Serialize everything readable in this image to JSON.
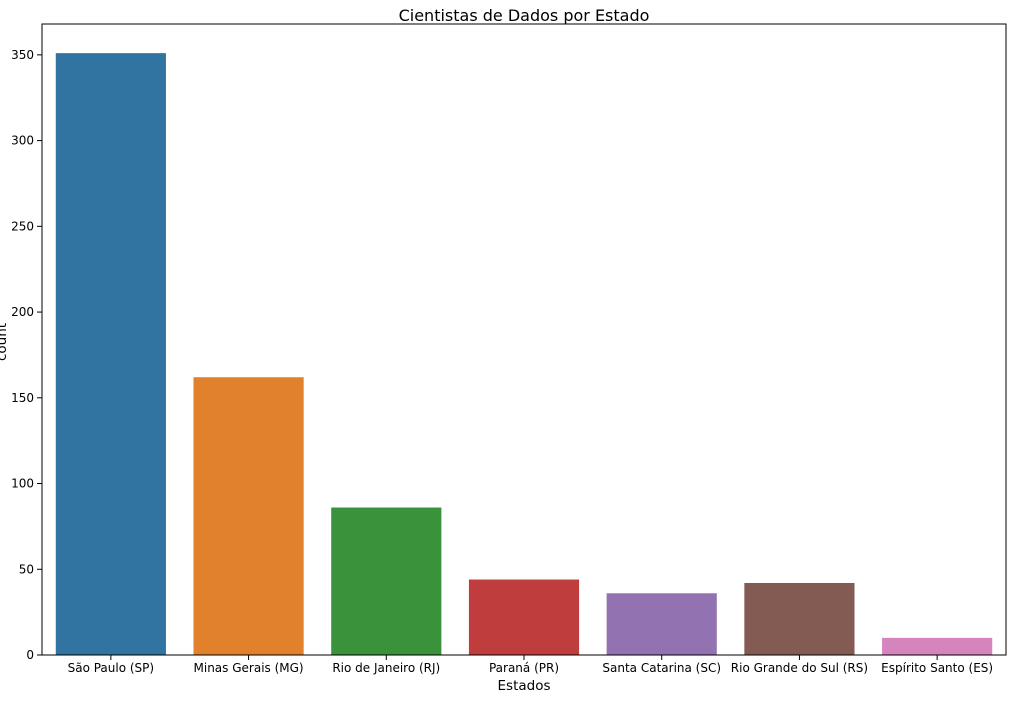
{
  "chart_data": {
    "type": "bar",
    "title": "Cientistas de Dados por Estado",
    "xlabel": "Estados",
    "ylabel": "count",
    "categories": [
      "São Paulo (SP)",
      "Minas Gerais (MG)",
      "Rio de Janeiro (RJ)",
      "Paraná (PR)",
      "Santa Catarina (SC)",
      "Rio Grande do Sul (RS)",
      "Espírito Santo (ES)"
    ],
    "values": [
      351,
      162,
      86,
      44,
      36,
      42,
      10
    ],
    "colors": [
      "#3274a1",
      "#e1812c",
      "#3a923a",
      "#c03d3e",
      "#9372b2",
      "#845b53",
      "#d684bd"
    ],
    "ylim": [
      0,
      368
    ],
    "yticks": [
      0,
      50,
      100,
      150,
      200,
      250,
      300,
      350
    ],
    "grid": false,
    "legend": "none"
  }
}
